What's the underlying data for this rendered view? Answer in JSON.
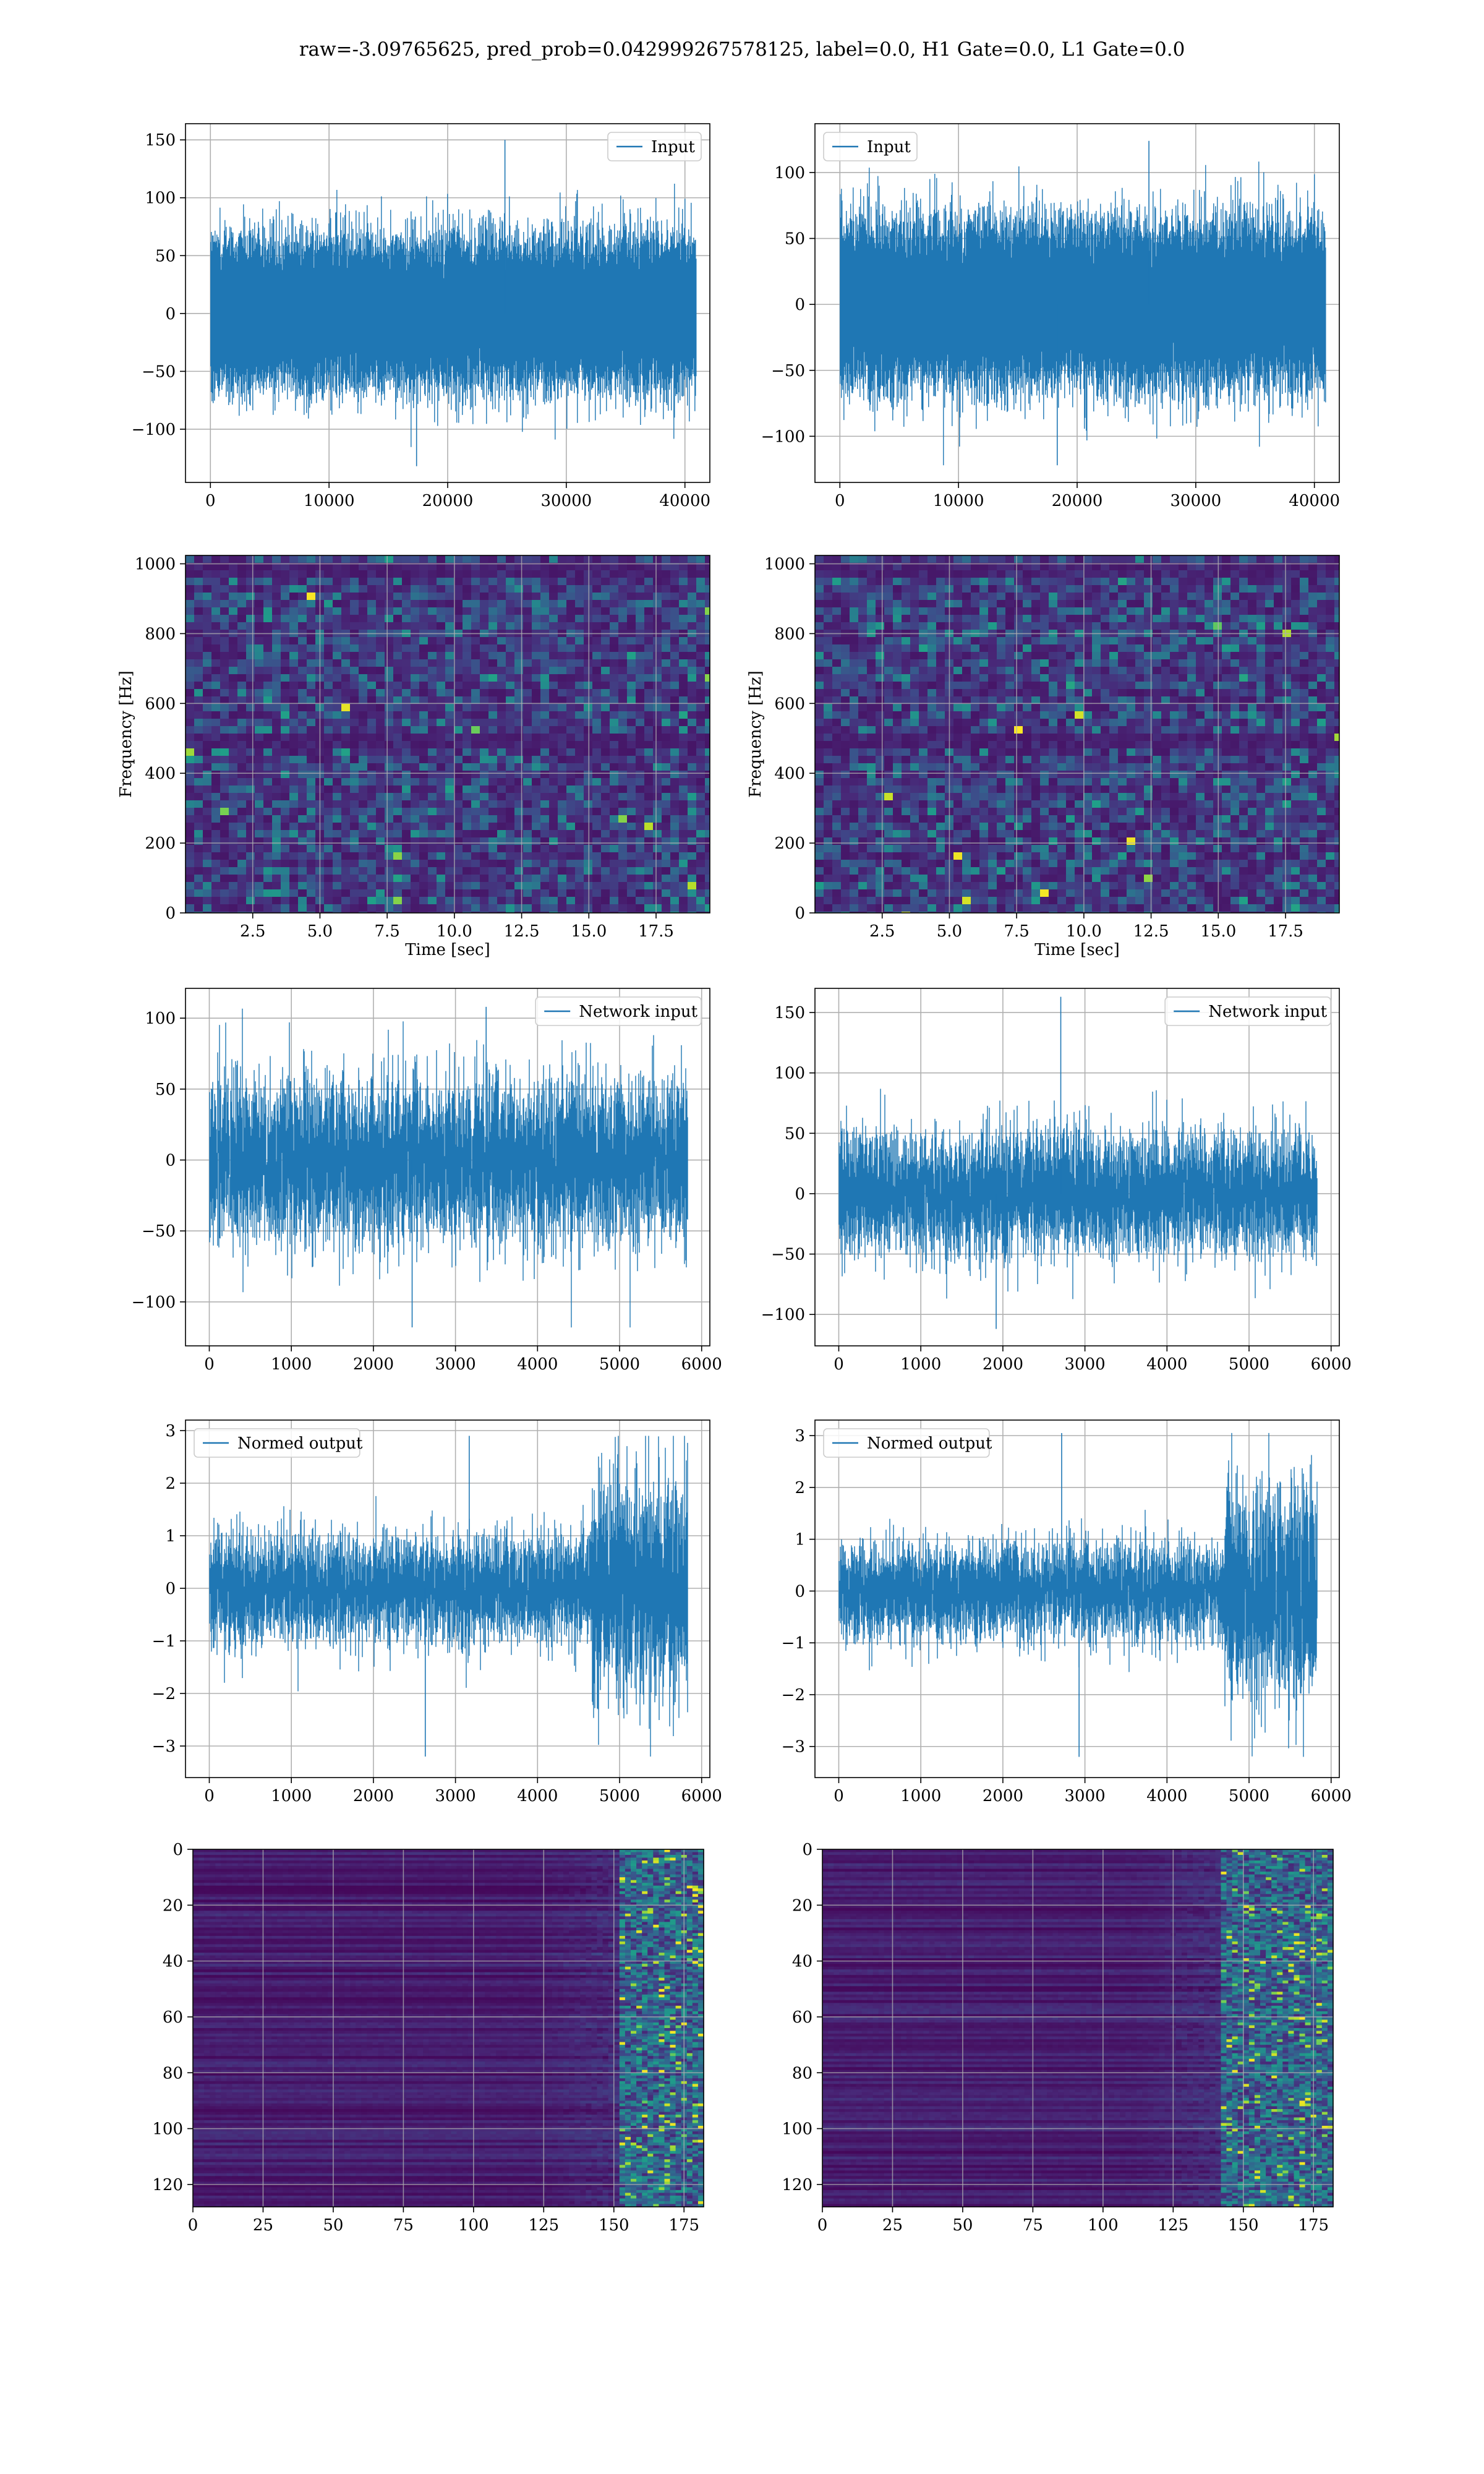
{
  "suptitle": "raw=-3.09765625, pred_prob=0.042999267578125, label=0.0, H1 Gate=0.0, L1 Gate=0.0",
  "colors": {
    "line": "#1f77b4",
    "grid": "#b0b0b0",
    "axis": "#000000",
    "viridis": [
      "#440154",
      "#482878",
      "#3e4989",
      "#31688e",
      "#26828e",
      "#1f9e89",
      "#35b779",
      "#6ece58",
      "#b5de2b",
      "#fde725"
    ]
  },
  "chart_data": [
    {
      "id": "h1-input",
      "type": "line",
      "title": "",
      "xlabel": "",
      "ylabel": "",
      "xlim": [
        -2100,
        42100
      ],
      "ylim": [
        -146,
        164
      ],
      "xticks": [
        0,
        10000,
        20000,
        30000,
        40000
      ],
      "yticks": [
        -100,
        -50,
        0,
        50,
        100,
        150
      ],
      "grid": true,
      "legend": "upper right",
      "series": [
        {
          "name": "Input",
          "n": 40960,
          "approx_std": 28,
          "max": 150,
          "min": -132
        }
      ]
    },
    {
      "id": "l1-input",
      "type": "line",
      "title": "",
      "xlabel": "",
      "ylabel": "",
      "xlim": [
        -2100,
        42100
      ],
      "ylim": [
        -135,
        137
      ],
      "xticks": [
        0,
        10000,
        20000,
        30000,
        40000
      ],
      "yticks": [
        -100,
        -50,
        0,
        50,
        100
      ],
      "grid": true,
      "legend": "upper left",
      "series": [
        {
          "name": "Input",
          "n": 40960,
          "approx_std": 27,
          "max": 124,
          "min": -122
        }
      ]
    },
    {
      "id": "h1-spectrogram",
      "type": "heatmap",
      "title": "",
      "xlabel": "Time [sec]",
      "ylabel": "Frequency [Hz]",
      "xlim": [
        0,
        19.5
      ],
      "ylim": [
        0,
        1024
      ],
      "xticks": [
        2.5,
        5.0,
        7.5,
        10.0,
        12.5,
        15.0,
        17.5
      ],
      "yticks": [
        0,
        200,
        400,
        600,
        800,
        1000
      ],
      "grid": true,
      "colormap": "viridis",
      "dark_bands_hz": [
        500,
        520,
        990
      ]
    },
    {
      "id": "l1-spectrogram",
      "type": "heatmap",
      "title": "",
      "xlabel": "Time [sec]",
      "ylabel": "Frequency [Hz]",
      "xlim": [
        0,
        19.5
      ],
      "ylim": [
        0,
        1024
      ],
      "xticks": [
        2.5,
        5.0,
        7.5,
        10.0,
        12.5,
        15.0,
        17.5
      ],
      "yticks": [
        0,
        200,
        400,
        600,
        800,
        1000
      ],
      "grid": true,
      "colormap": "viridis",
      "dark_bands_hz": [
        500,
        520,
        990
      ]
    },
    {
      "id": "h1-network-input",
      "type": "line",
      "title": "",
      "xlabel": "",
      "ylabel": "",
      "xlim": [
        -290,
        6100
      ],
      "ylim": [
        -131,
        121
      ],
      "xticks": [
        0,
        1000,
        2000,
        3000,
        4000,
        5000,
        6000
      ],
      "yticks": [
        -100,
        -50,
        0,
        50,
        100
      ],
      "grid": true,
      "legend": "upper right",
      "series": [
        {
          "name": "Network input",
          "n": 5830,
          "approx_std": 28,
          "max": 108,
          "min": -118
        }
      ]
    },
    {
      "id": "l1-network-input",
      "type": "line",
      "title": "",
      "xlabel": "",
      "ylabel": "",
      "xlim": [
        -290,
        6100
      ],
      "ylim": [
        -126,
        170
      ],
      "xticks": [
        0,
        1000,
        2000,
        3000,
        4000,
        5000,
        6000
      ],
      "yticks": [
        -100,
        -50,
        0,
        50,
        100,
        150
      ],
      "grid": true,
      "legend": "upper right",
      "series": [
        {
          "name": "Network input",
          "n": 5830,
          "approx_std": 25,
          "max": 163,
          "min": -112
        }
      ]
    },
    {
      "id": "h1-normed-output",
      "type": "line",
      "title": "",
      "xlabel": "",
      "ylabel": "",
      "xlim": [
        -290,
        6100
      ],
      "ylim": [
        -3.6,
        3.2
      ],
      "xticks": [
        0,
        1000,
        2000,
        3000,
        4000,
        5000,
        6000
      ],
      "yticks": [
        -3,
        -2,
        -1,
        0,
        1,
        2,
        3
      ],
      "grid": true,
      "legend": "upper left",
      "series": [
        {
          "name": "Normed output",
          "n": 5830,
          "approx_std": 0.5,
          "burst_start": 4650,
          "burst_std": 1.0,
          "max": 2.9,
          "min": -3.2
        }
      ]
    },
    {
      "id": "l1-normed-output",
      "type": "line",
      "title": "",
      "xlabel": "",
      "ylabel": "",
      "xlim": [
        -290,
        6100
      ],
      "ylim": [
        -3.6,
        3.3
      ],
      "xticks": [
        0,
        1000,
        2000,
        3000,
        4000,
        5000,
        6000
      ],
      "yticks": [
        -3,
        -2,
        -1,
        0,
        1,
        2,
        3
      ],
      "grid": true,
      "legend": "upper left",
      "series": [
        {
          "name": "Normed output",
          "n": 5830,
          "approx_std": 0.45,
          "burst_start": 4700,
          "burst_std": 1.0,
          "max": 3.05,
          "min": -3.2
        }
      ]
    },
    {
      "id": "h1-feature-map",
      "type": "heatmap",
      "title": "",
      "xlabel": "",
      "ylabel": "",
      "xlim": [
        0,
        182
      ],
      "ylim": [
        128,
        0
      ],
      "xticks": [
        0,
        25,
        50,
        75,
        100,
        125,
        150,
        175
      ],
      "yticks": [
        0,
        20,
        40,
        60,
        80,
        100,
        120
      ],
      "grid": true,
      "colormap": "viridis",
      "activity_onset_col": 150
    },
    {
      "id": "l1-feature-map",
      "type": "heatmap",
      "title": "",
      "xlabel": "",
      "ylabel": "",
      "xlim": [
        0,
        182
      ],
      "ylim": [
        128,
        0
      ],
      "xticks": [
        0,
        25,
        50,
        75,
        100,
        125,
        150,
        175
      ],
      "yticks": [
        0,
        20,
        40,
        60,
        80,
        100,
        120
      ],
      "grid": true,
      "colormap": "viridis",
      "activity_onset_col": 140
    }
  ]
}
